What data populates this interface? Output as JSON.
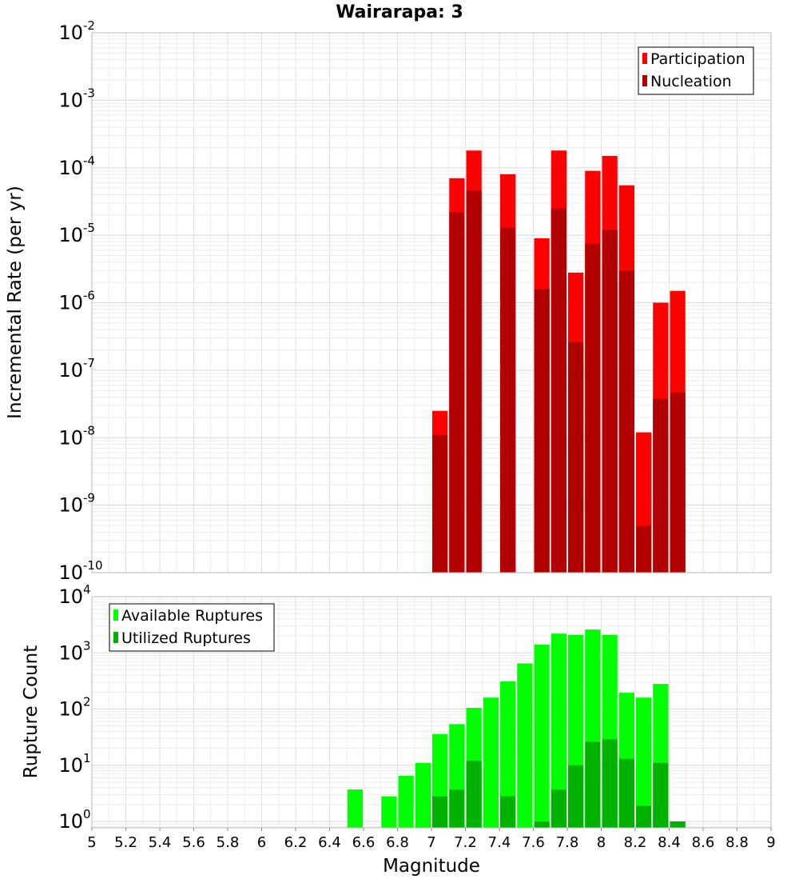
{
  "chart_data": [
    {
      "type": "bar",
      "title": "Wairarapa: 3",
      "ylabel": "Incremental Rate (per yr)",
      "y_scale": "log",
      "ylim": [
        1e-10,
        0.01
      ],
      "xlim": [
        5,
        9
      ],
      "grid": true,
      "legend_position": "top-right",
      "bin_width": 0.1,
      "y_ticks": [
        {
          "base": "10",
          "exp": "-10"
        },
        {
          "base": "10",
          "exp": "-9"
        },
        {
          "base": "10",
          "exp": "-8"
        },
        {
          "base": "10",
          "exp": "-7"
        },
        {
          "base": "10",
          "exp": "-6"
        },
        {
          "base": "10",
          "exp": "-5"
        },
        {
          "base": "10",
          "exp": "-4"
        },
        {
          "base": "10",
          "exp": "-3"
        },
        {
          "base": "10",
          "exp": "-2"
        }
      ],
      "series": [
        {
          "name": "Participation",
          "color": "#ff0000",
          "x": [
            7.0,
            7.1,
            7.2,
            7.4,
            7.6,
            7.7,
            7.8,
            7.9,
            8.0,
            8.1,
            8.2,
            8.3,
            8.4
          ],
          "values": [
            2.5e-08,
            7e-05,
            0.00018,
            8e-05,
            9e-06,
            0.00018,
            2.8e-06,
            9e-05,
            0.00015,
            5.5e-05,
            1.2e-08,
            1e-06,
            1.5e-06
          ]
        },
        {
          "name": "Nucleation",
          "color": "#b20000",
          "x": [
            7.0,
            7.1,
            7.2,
            7.4,
            7.6,
            7.7,
            7.8,
            7.9,
            8.0,
            8.1,
            8.2,
            8.3,
            8.4
          ],
          "values": [
            1.1e-08,
            2.2e-05,
            4.6e-05,
            1.3e-05,
            1.6e-06,
            2.5e-05,
            2.6e-07,
            7.5e-06,
            1.2e-05,
            3e-06,
            5e-10,
            3.8e-08,
            4.7e-08
          ]
        }
      ]
    },
    {
      "type": "bar",
      "xlabel": "Magnitude",
      "ylabel": "Rupture Count",
      "y_scale": "log",
      "ylim": [
        0.77,
        10000
      ],
      "xlim": [
        5,
        9
      ],
      "grid": true,
      "legend_position": "top-left",
      "bin_width": 0.1,
      "x_ticks": [
        "5",
        "5.2",
        "5.4",
        "5.6",
        "5.8",
        "6",
        "6.2",
        "6.4",
        "6.6",
        "6.8",
        "7",
        "7.2",
        "7.4",
        "7.6",
        "7.8",
        "8",
        "8.2",
        "8.4",
        "8.6",
        "8.8",
        "9"
      ],
      "y_ticks": [
        {
          "base": "10",
          "exp": "0"
        },
        {
          "base": "10",
          "exp": "1"
        },
        {
          "base": "10",
          "exp": "2"
        },
        {
          "base": "10",
          "exp": "3"
        },
        {
          "base": "10",
          "exp": "4"
        }
      ],
      "series": [
        {
          "name": "Available Ruptures",
          "color": "#00ff00",
          "x": [
            6.5,
            6.7,
            6.8,
            6.9,
            7.0,
            7.1,
            7.2,
            7.3,
            7.4,
            7.5,
            7.6,
            7.7,
            7.8,
            7.9,
            8.0,
            8.1,
            8.2,
            8.3,
            8.4
          ],
          "values": [
            3.7,
            2.8,
            6.5,
            11,
            36,
            54,
            105,
            160,
            310,
            650,
            1400,
            2200,
            2100,
            2600,
            2100,
            195,
            160,
            280,
            1
          ]
        },
        {
          "name": "Utilized Ruptures",
          "color": "#00b200",
          "x": [
            7.0,
            7.1,
            7.2,
            7.4,
            7.6,
            7.7,
            7.8,
            7.9,
            8.0,
            8.1,
            8.2,
            8.3,
            8.4
          ],
          "values": [
            2.8,
            3.7,
            12,
            2.8,
            1,
            3.7,
            10,
            26,
            29,
            13,
            1.9,
            11,
            1
          ]
        }
      ]
    }
  ]
}
